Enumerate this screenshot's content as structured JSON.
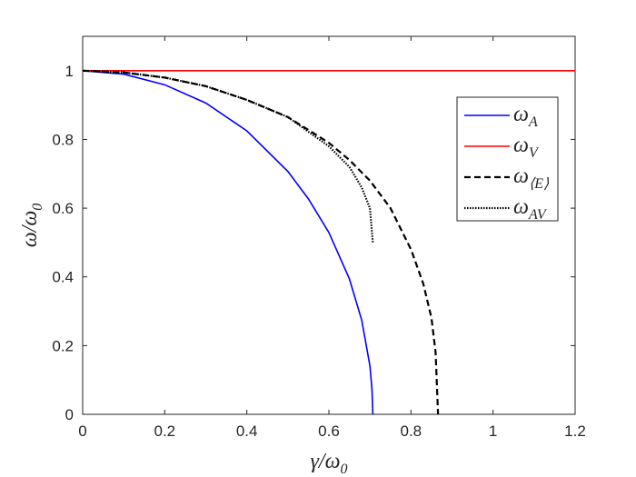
{
  "chart_data": {
    "type": "line",
    "xlabel": {
      "text": "γ/ω",
      "subscript": "0"
    },
    "ylabel": {
      "text": "ω/ω",
      "subscript": "0"
    },
    "xlim": [
      0,
      1.2
    ],
    "ylim": [
      0,
      1.1
    ],
    "xticks": [
      0,
      0.2,
      0.4,
      0.6,
      0.8,
      1,
      1.2
    ],
    "yticks": [
      0,
      0.2,
      0.4,
      0.6,
      0.8,
      1
    ],
    "legend": "upper right",
    "series": [
      {
        "name": "ω",
        "subscript": "A",
        "color": "#0000ff",
        "line_style": "solid",
        "x": [
          0,
          0.1,
          0.2,
          0.3,
          0.4,
          0.5,
          0.55,
          0.6,
          0.65,
          0.68,
          0.7,
          0.705,
          0.7071
        ],
        "values": [
          1,
          0.99,
          0.959,
          0.906,
          0.825,
          0.707,
          0.627,
          0.529,
          0.394,
          0.274,
          0.141,
          0.073,
          0
        ]
      },
      {
        "name": "ω",
        "subscript": "V",
        "color": "#ff0000",
        "line_style": "solid",
        "x": [
          0,
          1.2
        ],
        "values": [
          1,
          1
        ]
      },
      {
        "name": "ω",
        "subscript": "⟨E⟩",
        "color": "#000000",
        "line_style": "dashed",
        "x": [
          0,
          0.1,
          0.2,
          0.3,
          0.4,
          0.5,
          0.6,
          0.65,
          0.7,
          0.75,
          0.8,
          0.83,
          0.85,
          0.86,
          0.866
        ],
        "values": [
          1,
          0.995,
          0.98,
          0.955,
          0.915,
          0.865,
          0.79,
          0.74,
          0.68,
          0.6,
          0.48,
          0.38,
          0.28,
          0.18,
          0
        ]
      },
      {
        "name": "ω",
        "subscript": "AV",
        "color": "#000000",
        "line_style": "dotted",
        "x": [
          0,
          0.1,
          0.2,
          0.3,
          0.4,
          0.5,
          0.6,
          0.65,
          0.68,
          0.7,
          0.707
        ],
        "values": [
          1,
          0.995,
          0.98,
          0.955,
          0.915,
          0.865,
          0.78,
          0.72,
          0.66,
          0.6,
          0.5
        ]
      }
    ]
  }
}
